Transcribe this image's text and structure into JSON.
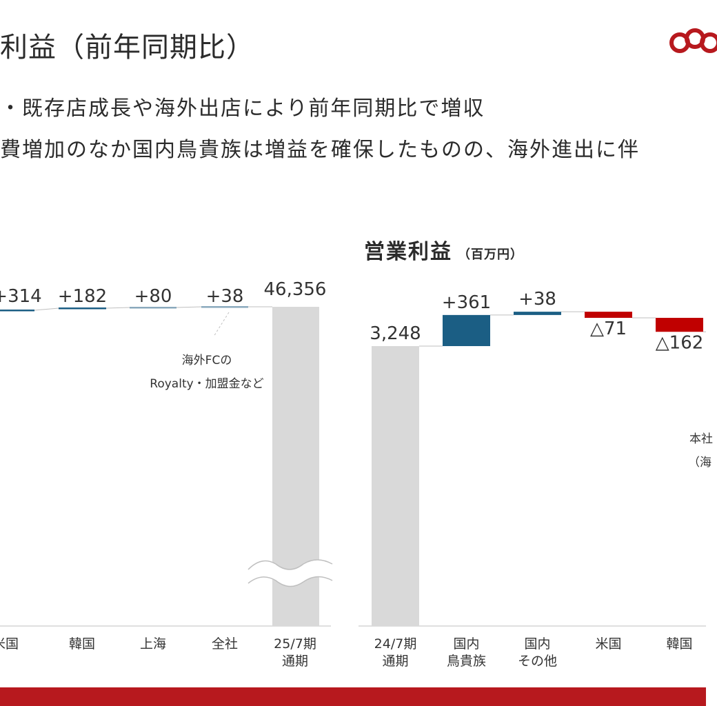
{
  "slide": {
    "title": "利益（前年同期比）",
    "bullets": [
      "・既存店成長や海外出店により前年同期比で増収",
      "費増加のなか国内鳥貴族は増益を確保したものの、海外進出に伴"
    ]
  },
  "logo": {
    "icon": "interlocking-rings-icon",
    "color": "#b7191e"
  },
  "colors": {
    "base": "#d9d9d9",
    "positive": "#1b5e84",
    "negative": "#c00000",
    "accent": "#b7191e"
  },
  "chart_data": [
    {
      "type": "bar",
      "subtype": "waterfall",
      "title": "",
      "categories": [
        "米国",
        "韓国",
        "上海",
        "全社",
        "25/7期\n通期"
      ],
      "values": [
        "+314",
        "+182",
        "+80",
        "+38",
        "46,356"
      ],
      "annotations": [
        "海外FCの",
        "Royalty・加盟金など"
      ],
      "axis_break": true
    },
    {
      "type": "bar",
      "subtype": "waterfall",
      "title": "営業利益",
      "unit": "（百万円）",
      "categories": [
        "24/7期\n通期",
        "国内\n鳥貴族",
        "国内\nその他",
        "米国",
        "韓国"
      ],
      "values": [
        "3,248",
        "+361",
        "+38",
        "△71",
        "△162"
      ],
      "numeric_values": [
        3248,
        361,
        38,
        -71,
        -162
      ],
      "annotations": [
        "本社",
        "（海"
      ]
    }
  ]
}
